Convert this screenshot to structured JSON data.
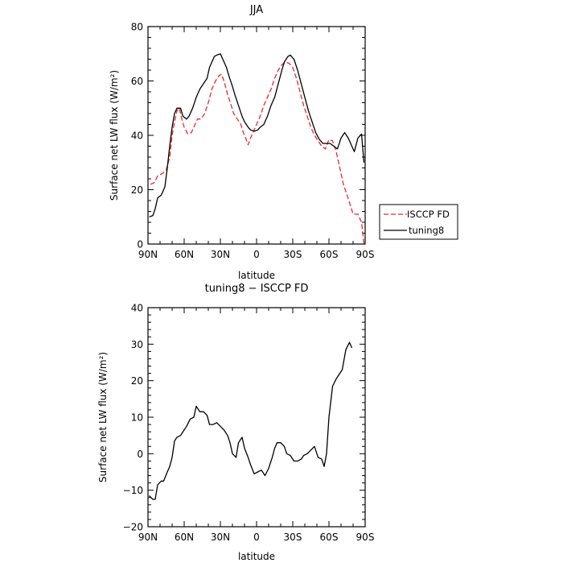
{
  "chart_data": [
    {
      "type": "line",
      "title": "JJA",
      "xlabel": "latitude",
      "ylabel": "Surface net LW flux (W/m²)",
      "xlim": [
        90,
        -90
      ],
      "ylim": [
        0,
        80
      ],
      "x_ticks": [
        90,
        60,
        30,
        0,
        -30,
        -60,
        -90
      ],
      "x_tick_labels": [
        "90N",
        "60N",
        "30N",
        "0",
        "30S",
        "60S",
        "90S"
      ],
      "y_ticks": [
        0,
        20,
        40,
        60,
        80
      ],
      "y_tick_labels": [
        "0",
        "20",
        "40",
        "60",
        "80"
      ],
      "legend_position": "right, outside plot",
      "series": [
        {
          "name": "ISCCP FD",
          "color": "#e8282d",
          "dash": "dashed",
          "points": [
            [
              88,
              22
            ],
            [
              85,
              22.5
            ],
            [
              82,
              25
            ],
            [
              78,
              26
            ],
            [
              75,
              27
            ],
            [
              72,
              32
            ],
            [
              70,
              40
            ],
            [
              68,
              45
            ],
            [
              66,
              49
            ],
            [
              64,
              50
            ],
            [
              62,
              46
            ],
            [
              60,
              43
            ],
            [
              57,
              40.5
            ],
            [
              54,
              41
            ],
            [
              51,
              44
            ],
            [
              49,
              46
            ],
            [
              46,
              46
            ],
            [
              43,
              48
            ],
            [
              40,
              52
            ],
            [
              37,
              57
            ],
            [
              34,
              60
            ],
            [
              31,
              62
            ],
            [
              29,
              62.5
            ],
            [
              27,
              60
            ],
            [
              24,
              55
            ],
            [
              21,
              51
            ],
            [
              19,
              48
            ],
            [
              16,
              46
            ],
            [
              13,
              44
            ],
            [
              11,
              41
            ],
            [
              9,
              39
            ],
            [
              7,
              36.5
            ],
            [
              5,
              39
            ],
            [
              3,
              41
            ],
            [
              0,
              44
            ],
            [
              -3,
              47
            ],
            [
              -6,
              51
            ],
            [
              -9,
              54
            ],
            [
              -12,
              57
            ],
            [
              -15,
              61
            ],
            [
              -18,
              64
            ],
            [
              -21,
              66
            ],
            [
              -24,
              67
            ],
            [
              -27,
              66.5
            ],
            [
              -30,
              65
            ],
            [
              -33,
              61
            ],
            [
              -36,
              56
            ],
            [
              -39,
              51
            ],
            [
              -42,
              47
            ],
            [
              -45,
              43
            ],
            [
              -48,
              40
            ],
            [
              -51,
              38
            ],
            [
              -54,
              36
            ],
            [
              -57,
              35
            ],
            [
              -60,
              38.5
            ],
            [
              -63,
              38
            ],
            [
              -66,
              34
            ],
            [
              -69,
              28
            ],
            [
              -72,
              22
            ],
            [
              -75,
              18
            ],
            [
              -78,
              14
            ],
            [
              -80,
              11
            ],
            [
              -84,
              11
            ],
            [
              -87,
              8
            ],
            [
              -89,
              0
            ]
          ]
        },
        {
          "name": "tuning8",
          "color": "#000000",
          "dash": "solid",
          "points": [
            [
              89,
              10
            ],
            [
              86,
              10.5
            ],
            [
              84,
              13
            ],
            [
              82,
              17
            ],
            [
              79,
              18
            ],
            [
              76,
              21
            ],
            [
              74,
              28
            ],
            [
              72,
              36
            ],
            [
              70,
              43
            ],
            [
              68,
              48
            ],
            [
              66,
              50
            ],
            [
              63,
              50
            ],
            [
              61,
              47
            ],
            [
              58,
              46
            ],
            [
              56,
              47
            ],
            [
              53,
              50
            ],
            [
              50,
              54
            ],
            [
              47,
              57
            ],
            [
              44,
              59
            ],
            [
              41,
              61
            ],
            [
              39,
              65
            ],
            [
              37,
              67
            ],
            [
              35,
              69
            ],
            [
              33,
              69.5
            ],
            [
              30,
              70
            ],
            [
              28,
              68
            ],
            [
              25,
              65
            ],
            [
              23,
              62
            ],
            [
              20,
              58
            ],
            [
              18,
              55
            ],
            [
              15,
              51
            ],
            [
              12,
              47
            ],
            [
              10,
              45
            ],
            [
              7,
              43
            ],
            [
              5,
              42
            ],
            [
              2,
              41.5
            ],
            [
              -1,
              42
            ],
            [
              -3,
              43
            ],
            [
              -6,
              44
            ],
            [
              -9,
              47
            ],
            [
              -12,
              51
            ],
            [
              -15,
              54
            ],
            [
              -18,
              59
            ],
            [
              -21,
              64
            ],
            [
              -23,
              67
            ],
            [
              -26,
              69
            ],
            [
              -28,
              69.5
            ],
            [
              -31,
              68
            ],
            [
              -34,
              64
            ],
            [
              -37,
              59
            ],
            [
              -40,
              54
            ],
            [
              -43,
              49
            ],
            [
              -46,
              45
            ],
            [
              -49,
              41
            ],
            [
              -52,
              38.5
            ],
            [
              -55,
              37
            ],
            [
              -58,
              37
            ],
            [
              -61,
              37
            ],
            [
              -64,
              36
            ],
            [
              -67,
              35
            ],
            [
              -70,
              39
            ],
            [
              -73,
              41
            ],
            [
              -76,
              39
            ],
            [
              -79,
              36
            ],
            [
              -81,
              34
            ],
            [
              -84,
              39
            ],
            [
              -87,
              40.5
            ],
            [
              -89,
              30
            ]
          ]
        }
      ]
    },
    {
      "type": "line",
      "title": "tuning8 − ISCCP FD",
      "xlabel": "latitude",
      "ylabel": "Surface net LW flux (W/m²)",
      "xlim": [
        90,
        -90
      ],
      "ylim": [
        -20,
        40
      ],
      "x_ticks": [
        90,
        60,
        30,
        0,
        -30,
        -60,
        -90
      ],
      "x_tick_labels": [
        "90N",
        "60N",
        "30N",
        "0",
        "30S",
        "60S",
        "90S"
      ],
      "y_ticks": [
        -20,
        -10,
        0,
        10,
        20,
        30,
        40
      ],
      "y_tick_labels": [
        "−20",
        "−10",
        "0",
        "10",
        "20",
        "30",
        "40"
      ],
      "series": [
        {
          "color": "#000000",
          "dash": "solid",
          "points": [
            [
              89,
              -11.5
            ],
            [
              86,
              -12.5
            ],
            [
              84,
              -12.5
            ],
            [
              82,
              -8.5
            ],
            [
              79,
              -7.5
            ],
            [
              77,
              -7.5
            ],
            [
              74,
              -5
            ],
            [
              72,
              -3.5
            ],
            [
              70,
              -1
            ],
            [
              68,
              3.5
            ],
            [
              66,
              4.5
            ],
            [
              63,
              5
            ],
            [
              61,
              6
            ],
            [
              58,
              7.5
            ],
            [
              55,
              9.5
            ],
            [
              52,
              10
            ],
            [
              50,
              13
            ],
            [
              47,
              11.5
            ],
            [
              44,
              11.5
            ],
            [
              41,
              10.5
            ],
            [
              39,
              8
            ],
            [
              36,
              8
            ],
            [
              33,
              8.5
            ],
            [
              30,
              7.5
            ],
            [
              27,
              6.5
            ],
            [
              24,
              5
            ],
            [
              22,
              3
            ],
            [
              20,
              0
            ],
            [
              17,
              -1
            ],
            [
              15,
              3
            ],
            [
              12,
              4.5
            ],
            [
              10,
              1.5
            ],
            [
              7,
              -1
            ],
            [
              5,
              -3
            ],
            [
              2,
              -5.5
            ],
            [
              -1,
              -5
            ],
            [
              -4,
              -4.5
            ],
            [
              -7,
              -6
            ],
            [
              -10,
              -4
            ],
            [
              -13,
              -1
            ],
            [
              -15,
              1.5
            ],
            [
              -17,
              3
            ],
            [
              -20,
              3
            ],
            [
              -23,
              2
            ],
            [
              -25,
              0
            ],
            [
              -28,
              -0.5
            ],
            [
              -31,
              -2
            ],
            [
              -34,
              -2
            ],
            [
              -37,
              -1.5
            ],
            [
              -39,
              -0.5
            ],
            [
              -42,
              0
            ],
            [
              -45,
              1
            ],
            [
              -48,
              2
            ],
            [
              -51,
              -1
            ],
            [
              -54,
              -1.5
            ],
            [
              -56,
              -3.5
            ],
            [
              -58,
              0
            ],
            [
              -60,
              10
            ],
            [
              -63,
              18.5
            ],
            [
              -66,
              20.5
            ],
            [
              -69,
              22
            ],
            [
              -71,
              23
            ],
            [
              -74,
              28.5
            ],
            [
              -77,
              30.5
            ],
            [
              -79,
              29
            ]
          ]
        }
      ]
    }
  ]
}
